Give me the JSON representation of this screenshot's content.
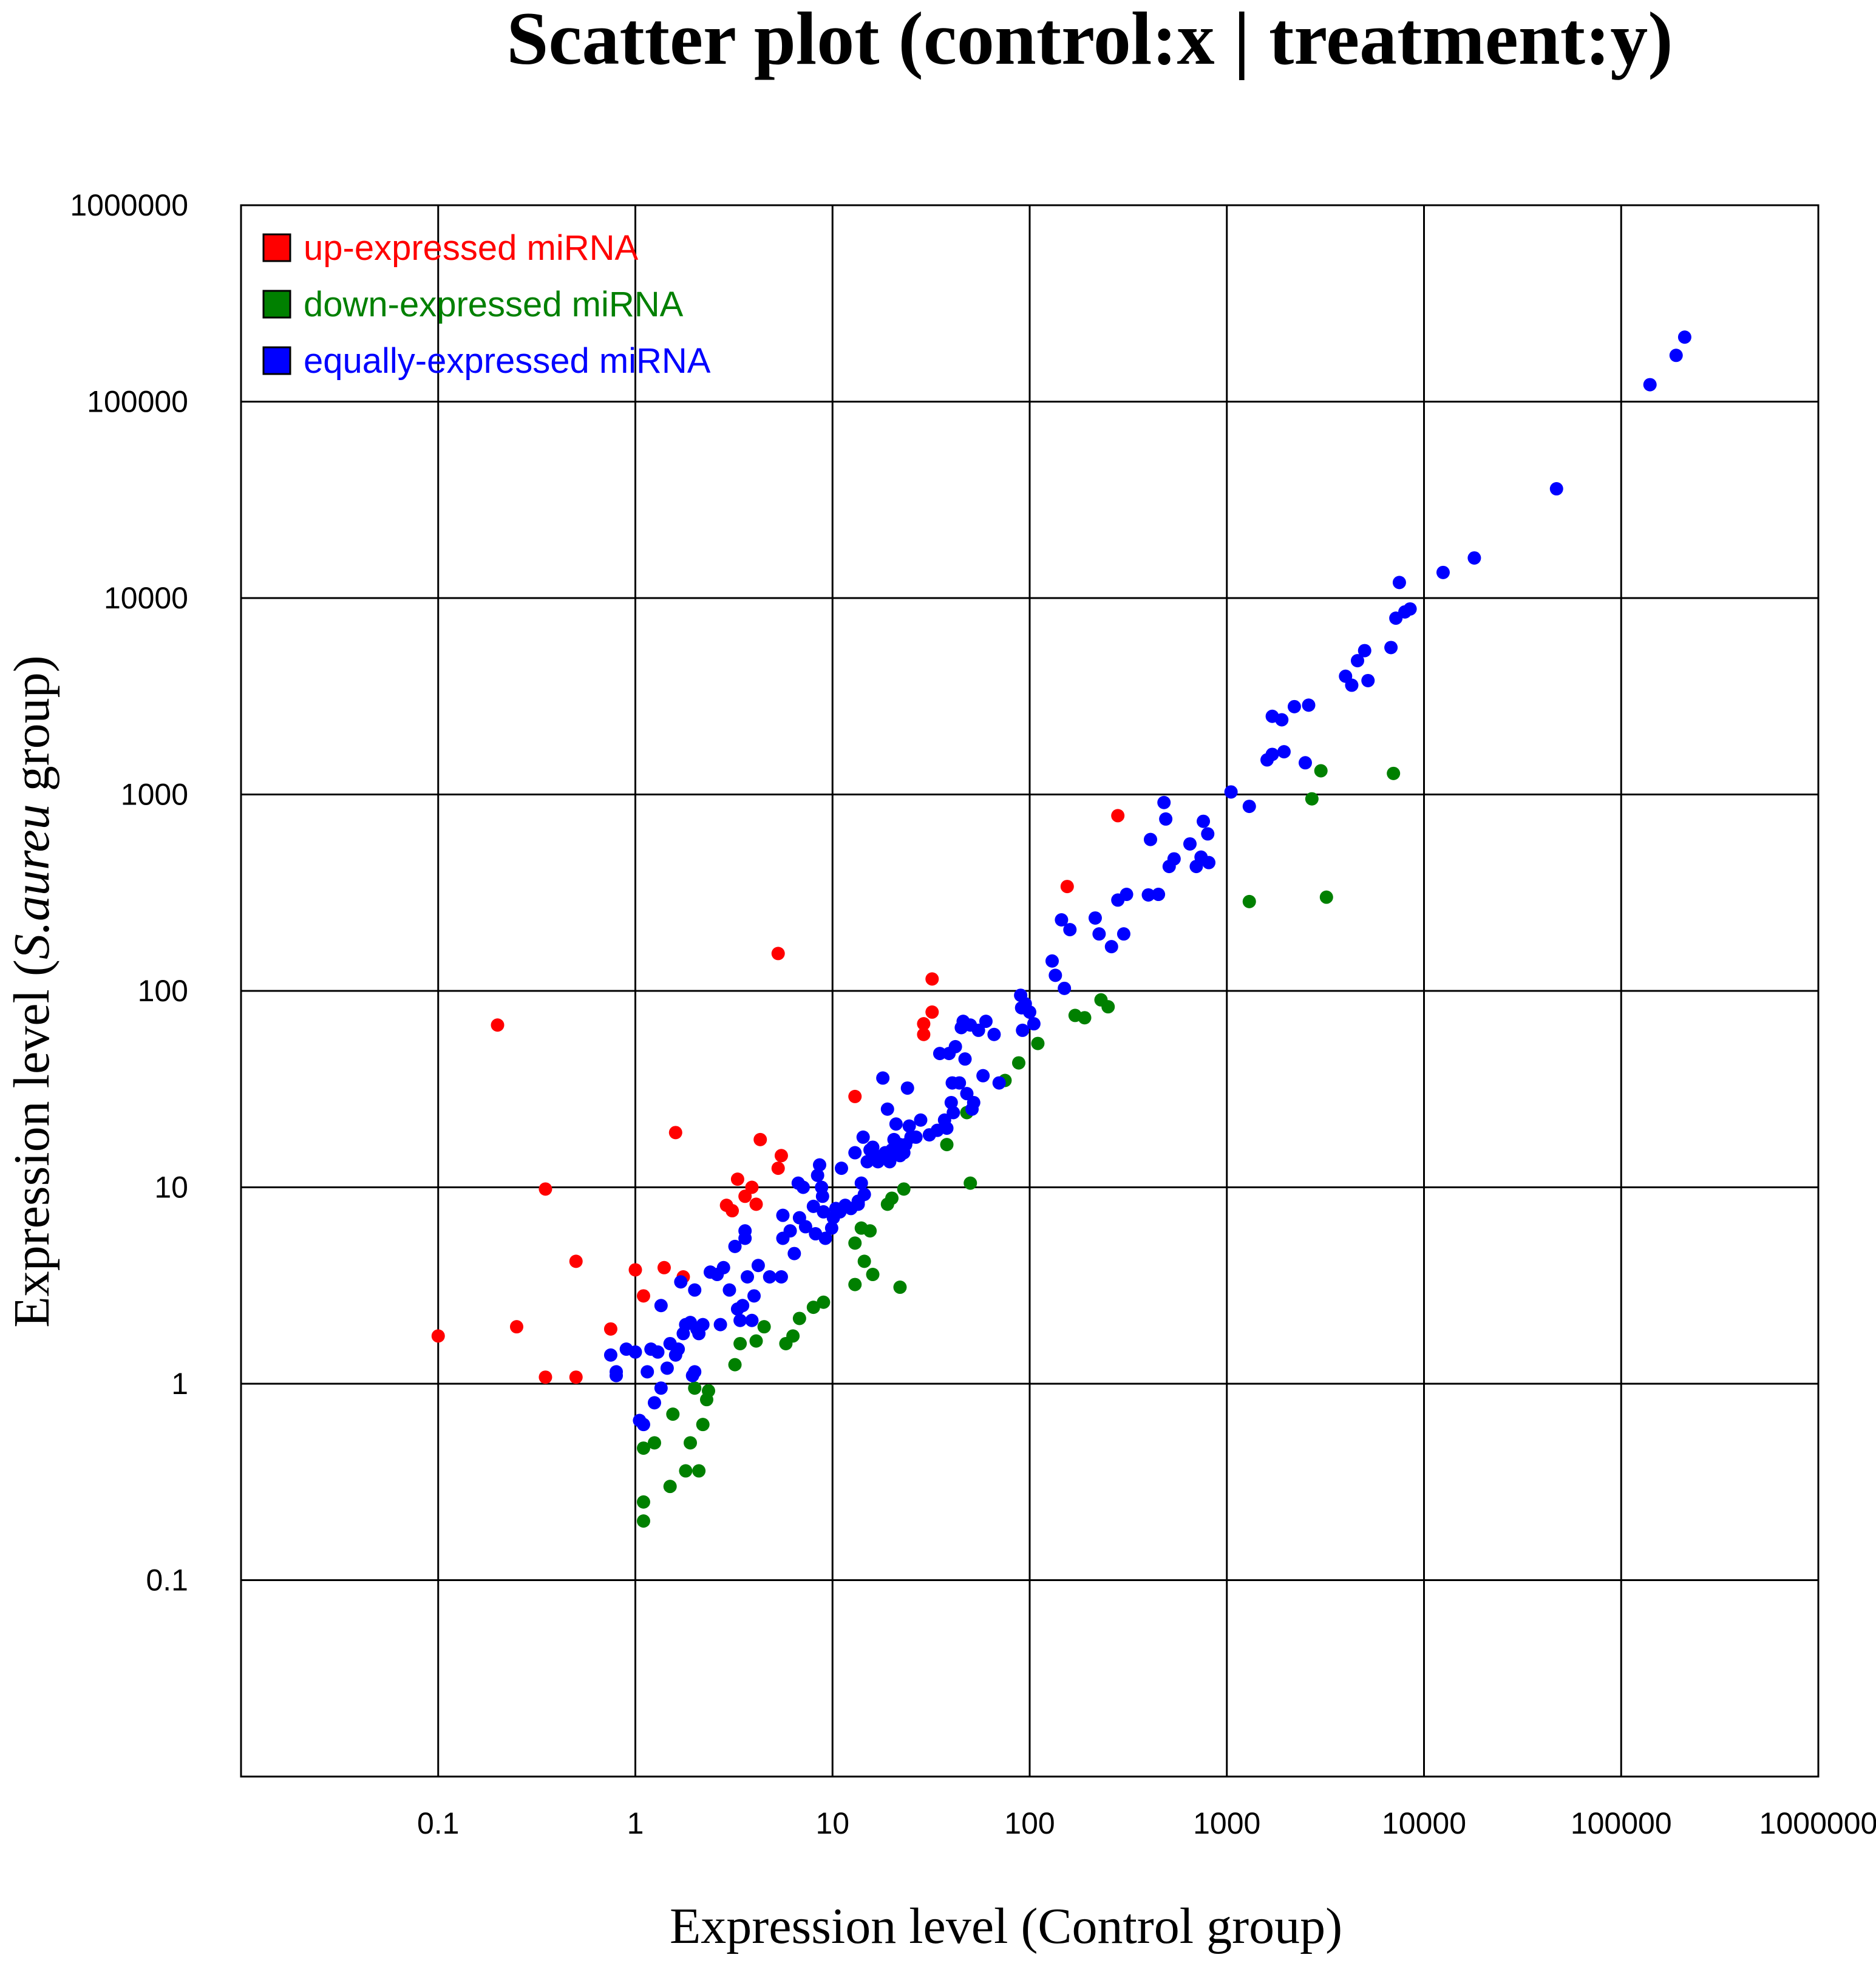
{
  "chart_data": {
    "type": "scatter",
    "title": "Scatter plot (control:x | treatment:y)",
    "xlabel": "Expression level (Control group)",
    "ylabel_parts": [
      "Expression level (",
      "S.aureu",
      " group)"
    ],
    "x_scale": "log",
    "y_scale": "log",
    "xlim": [
      0.01,
      1000000
    ],
    "ylim": [
      0.01,
      1000000
    ],
    "x_ticks": [
      "0.1",
      "1",
      "10",
      "100",
      "1000",
      "10000",
      "100000",
      "1000000"
    ],
    "y_ticks": [
      "0.1",
      "1",
      "10",
      "100",
      "1000",
      "10000",
      "100000",
      "1000000"
    ],
    "grid": true,
    "legend_position": "top-left",
    "series": [
      {
        "name": "up-expressed miRNA",
        "color": "#ff0000",
        "points": [
          [
            0.1,
            1.75
          ],
          [
            0.2,
            67
          ],
          [
            0.25,
            1.95
          ],
          [
            0.35,
            9.8
          ],
          [
            0.35,
            1.08
          ],
          [
            0.5,
            4.2
          ],
          [
            0.5,
            1.08
          ],
          [
            0.75,
            1.9
          ],
          [
            1.0,
            3.8
          ],
          [
            1.1,
            2.8
          ],
          [
            1.4,
            3.9
          ],
          [
            1.6,
            19
          ],
          [
            1.75,
            3.5
          ],
          [
            2.9,
            8.1
          ],
          [
            3.1,
            7.6
          ],
          [
            3.3,
            11
          ],
          [
            3.6,
            9
          ],
          [
            3.9,
            10
          ],
          [
            4.1,
            8.2
          ],
          [
            4.3,
            17.5
          ],
          [
            5.3,
            12.5
          ],
          [
            5.5,
            14.5
          ],
          [
            5.3,
            155
          ],
          [
            13,
            29
          ],
          [
            29,
            60
          ],
          [
            29,
            68
          ],
          [
            32,
            78
          ],
          [
            32,
            115
          ],
          [
            155,
            340
          ],
          [
            280,
            780
          ]
        ]
      },
      {
        "name": "down-expressed miRNA",
        "color": "#008000",
        "points": [
          [
            1.1,
            0.2
          ],
          [
            1.1,
            0.25
          ],
          [
            1.1,
            0.47
          ],
          [
            1.25,
            0.5
          ],
          [
            1.5,
            0.3
          ],
          [
            1.55,
            0.7
          ],
          [
            1.8,
            0.36
          ],
          [
            1.9,
            0.5
          ],
          [
            2.0,
            0.95
          ],
          [
            2.1,
            0.36
          ],
          [
            2.2,
            0.62
          ],
          [
            2.3,
            0.83
          ],
          [
            2.35,
            0.92
          ],
          [
            3.2,
            1.25
          ],
          [
            3.4,
            1.6
          ],
          [
            4.1,
            1.65
          ],
          [
            4.5,
            1.95
          ],
          [
            5.8,
            1.6
          ],
          [
            6.3,
            1.75
          ],
          [
            6.8,
            2.15
          ],
          [
            8.0,
            2.45
          ],
          [
            9.0,
            2.6
          ],
          [
            13,
            5.2
          ],
          [
            13,
            3.2
          ],
          [
            14,
            6.2
          ],
          [
            14.5,
            4.2
          ],
          [
            15.5,
            6.0
          ],
          [
            16,
            3.6
          ],
          [
            19,
            8.2
          ],
          [
            20,
            8.8
          ],
          [
            22,
            3.1
          ],
          [
            23,
            9.8
          ],
          [
            38,
            16.5
          ],
          [
            48,
            24
          ],
          [
            50,
            10.5
          ],
          [
            75,
            35
          ],
          [
            88,
            43
          ],
          [
            110,
            54
          ],
          [
            170,
            75
          ],
          [
            190,
            73
          ],
          [
            230,
            90
          ],
          [
            250,
            83
          ],
          [
            1300,
            285
          ],
          [
            2700,
            950
          ],
          [
            3000,
            1320
          ],
          [
            3200,
            300
          ],
          [
            7000,
            1280
          ]
        ]
      },
      {
        "name": "equally-expressed miRNA",
        "color": "#0000ff",
        "points": [
          [
            0.75,
            1.4
          ],
          [
            0.8,
            1.1
          ],
          [
            0.8,
            1.15
          ],
          [
            0.9,
            1.5
          ],
          [
            1.0,
            1.45
          ],
          [
            1.05,
            0.65
          ],
          [
            1.1,
            0.62
          ],
          [
            1.15,
            1.15
          ],
          [
            1.2,
            1.5
          ],
          [
            1.25,
            0.8
          ],
          [
            1.3,
            1.45
          ],
          [
            1.35,
            2.5
          ],
          [
            1.35,
            0.95
          ],
          [
            1.45,
            1.2
          ],
          [
            1.5,
            1.6
          ],
          [
            1.6,
            1.4
          ],
          [
            1.65,
            1.5
          ],
          [
            1.7,
            3.3
          ],
          [
            1.75,
            1.8
          ],
          [
            1.8,
            2.0
          ],
          [
            1.9,
            2.05
          ],
          [
            1.95,
            1.1
          ],
          [
            2.0,
            1.15
          ],
          [
            2.0,
            3.0
          ],
          [
            2.05,
            1.9
          ],
          [
            2.1,
            1.8
          ],
          [
            2.2,
            2.0
          ],
          [
            2.4,
            3.7
          ],
          [
            2.6,
            3.6
          ],
          [
            2.7,
            2.0
          ],
          [
            2.8,
            3.9
          ],
          [
            3.0,
            3.0
          ],
          [
            3.2,
            5.0
          ],
          [
            3.3,
            2.4
          ],
          [
            3.4,
            2.1
          ],
          [
            3.5,
            2.5
          ],
          [
            3.6,
            5.5
          ],
          [
            3.6,
            6.0
          ],
          [
            3.7,
            3.5
          ],
          [
            3.9,
            2.1
          ],
          [
            4.0,
            2.8
          ],
          [
            4.2,
            4.0
          ],
          [
            4.8,
            3.5
          ],
          [
            5.5,
            3.5
          ],
          [
            5.6,
            5.5
          ],
          [
            5.6,
            7.2
          ],
          [
            6.1,
            6.0
          ],
          [
            6.4,
            4.6
          ],
          [
            6.7,
            10.5
          ],
          [
            6.8,
            7.0
          ],
          [
            7.1,
            10.0
          ],
          [
            7.3,
            6.3
          ],
          [
            8.0,
            8.0
          ],
          [
            8.2,
            5.8
          ],
          [
            8.4,
            11.5
          ],
          [
            8.6,
            13.0
          ],
          [
            8.8,
            10.0
          ],
          [
            8.9,
            9.0
          ],
          [
            9.0,
            7.5
          ],
          [
            9.2,
            5.5
          ],
          [
            9.9,
            6.2
          ],
          [
            10.1,
            7.0
          ],
          [
            10.4,
            7.8
          ],
          [
            10.9,
            7.5
          ],
          [
            11.1,
            12.5
          ],
          [
            11.6,
            8.1
          ],
          [
            12.4,
            7.8
          ],
          [
            13.0,
            15.0
          ],
          [
            13.5,
            8.2
          ],
          [
            13.5,
            8.5
          ],
          [
            14.0,
            10.5
          ],
          [
            14.3,
            18.0
          ],
          [
            14.5,
            9.2
          ],
          [
            15.0,
            13.5
          ],
          [
            15.5,
            15.5
          ],
          [
            16.0,
            16.0
          ],
          [
            16.5,
            14.5
          ],
          [
            17.0,
            13.5
          ],
          [
            18.0,
            36.0
          ],
          [
            18.5,
            15.0
          ],
          [
            19.0,
            25.0
          ],
          [
            19.5,
            13.5
          ],
          [
            20.0,
            15.5
          ],
          [
            20.5,
            17.5
          ],
          [
            21.0,
            21.0
          ],
          [
            22.0,
            14.5
          ],
          [
            22.0,
            16.5
          ],
          [
            23.0,
            15.0
          ],
          [
            23.5,
            16.5
          ],
          [
            24.0,
            32.0
          ],
          [
            24.5,
            20.5
          ],
          [
            25.0,
            18.0
          ],
          [
            26.5,
            18.0
          ],
          [
            28.0,
            22.0
          ],
          [
            31.0,
            18.5
          ],
          [
            34.0,
            19.5
          ],
          [
            35.0,
            48.0
          ],
          [
            37.0,
            22.0
          ],
          [
            38.0,
            20.0
          ],
          [
            39.0,
            48.0
          ],
          [
            40.0,
            27.0
          ],
          [
            40.5,
            34.0
          ],
          [
            41.0,
            24.0
          ],
          [
            42.0,
            52.0
          ],
          [
            44.0,
            34.0
          ],
          [
            45.0,
            65.0
          ],
          [
            46.0,
            70.0
          ],
          [
            47.0,
            45.0
          ],
          [
            48.0,
            30.0
          ],
          [
            50.0,
            67.0
          ],
          [
            51.0,
            25.0
          ],
          [
            52.0,
            27.0
          ],
          [
            55.0,
            63.0
          ],
          [
            58.0,
            37.0
          ],
          [
            60.0,
            70.0
          ],
          [
            66.0,
            60.0
          ],
          [
            70.0,
            34.0
          ],
          [
            90.0,
            95.0
          ],
          [
            91.0,
            82.0
          ],
          [
            92.0,
            63.0
          ],
          [
            95.0,
            86.0
          ],
          [
            100.0,
            78.0
          ],
          [
            105.0,
            68.0
          ],
          [
            130.0,
            142.0
          ],
          [
            135.0,
            120.0
          ],
          [
            145.0,
            230.0
          ],
          [
            150.0,
            103.0
          ],
          [
            160.0,
            205.0
          ],
          [
            215.0,
            235.0
          ],
          [
            225.0,
            195.0
          ],
          [
            260.0,
            168.0
          ],
          [
            280.0,
            290.0
          ],
          [
            300.0,
            195.0
          ],
          [
            310.0,
            310.0
          ],
          [
            400.0,
            308.0
          ],
          [
            410.0,
            590.0
          ],
          [
            450.0,
            310.0
          ],
          [
            480.0,
            910.0
          ],
          [
            490.0,
            750.0
          ],
          [
            510.0,
            430.0
          ],
          [
            540.0,
            470.0
          ],
          [
            650.0,
            560.0
          ],
          [
            700.0,
            430.0
          ],
          [
            740.0,
            480.0
          ],
          [
            760.0,
            730.0
          ],
          [
            800.0,
            630.0
          ],
          [
            810.0,
            450.0
          ],
          [
            1050.0,
            1030.0
          ],
          [
            1300.0,
            870.0
          ],
          [
            1600.0,
            1500.0
          ],
          [
            1700.0,
            1600.0
          ],
          [
            1700.0,
            2500.0
          ],
          [
            1900.0,
            2400.0
          ],
          [
            1950.0,
            1650.0
          ],
          [
            2200.0,
            2800.0
          ],
          [
            2500.0,
            1450.0
          ],
          [
            2600.0,
            2850.0
          ],
          [
            4000.0,
            4000.0
          ],
          [
            4300.0,
            3600.0
          ],
          [
            4600.0,
            4800.0
          ],
          [
            5000.0,
            5400.0
          ],
          [
            5200.0,
            3800.0
          ],
          [
            6800.0,
            5600.0
          ],
          [
            7200.0,
            7900.0
          ],
          [
            7500.0,
            12000.0
          ],
          [
            8000.0,
            8500.0
          ],
          [
            8500.0,
            8800.0
          ],
          [
            12500.0,
            13500.0
          ],
          [
            18000.0,
            16000.0
          ],
          [
            47000.0,
            36000.0
          ],
          [
            140000.0,
            122000.0
          ],
          [
            190000.0,
            172000.0
          ],
          [
            210000.0,
            213000.0
          ]
        ]
      }
    ]
  }
}
